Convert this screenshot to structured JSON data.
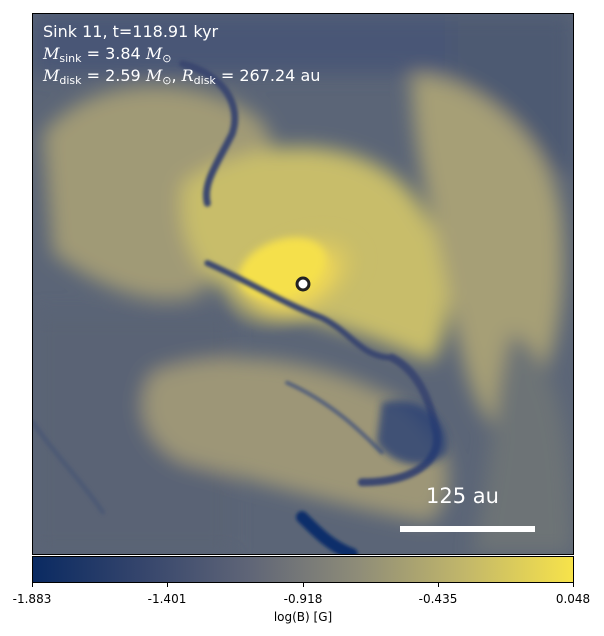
{
  "panel": {
    "line1": "Sink 11, t=118.91 kyr",
    "msink_symbol": "M",
    "msink_sub": "sink",
    "msink_value": " = 3.84 ",
    "mdisk_symbol": "M",
    "mdisk_sub": "disk",
    "mdisk_value": " = 2.59 ",
    "rdisk_symbol": "R",
    "rdisk_sub": "disk",
    "rdisk_value": " = 267.24 au",
    "msun_symbol": "M",
    "msun_sub": "⊙",
    "comma": ", "
  },
  "scale_bar": {
    "label": "125 au"
  },
  "colorbar": {
    "title": "log(B) [G]",
    "ticks": [
      "-1.883",
      "-1.401",
      "-0.918",
      "-0.435",
      "0.048"
    ],
    "min": -1.883,
    "max": 0.048,
    "colormap": "cividis",
    "colors": [
      "#0a2a62",
      "#35456c",
      "#5f6577",
      "#8e8c78",
      "#c2b76a",
      "#f7e34a"
    ]
  },
  "colors": {
    "accent_low": "#0a2a62",
    "accent_high": "#f7e34a",
    "sink_marker_fill": "#ffffff",
    "sink_marker_edge": "#222222"
  }
}
